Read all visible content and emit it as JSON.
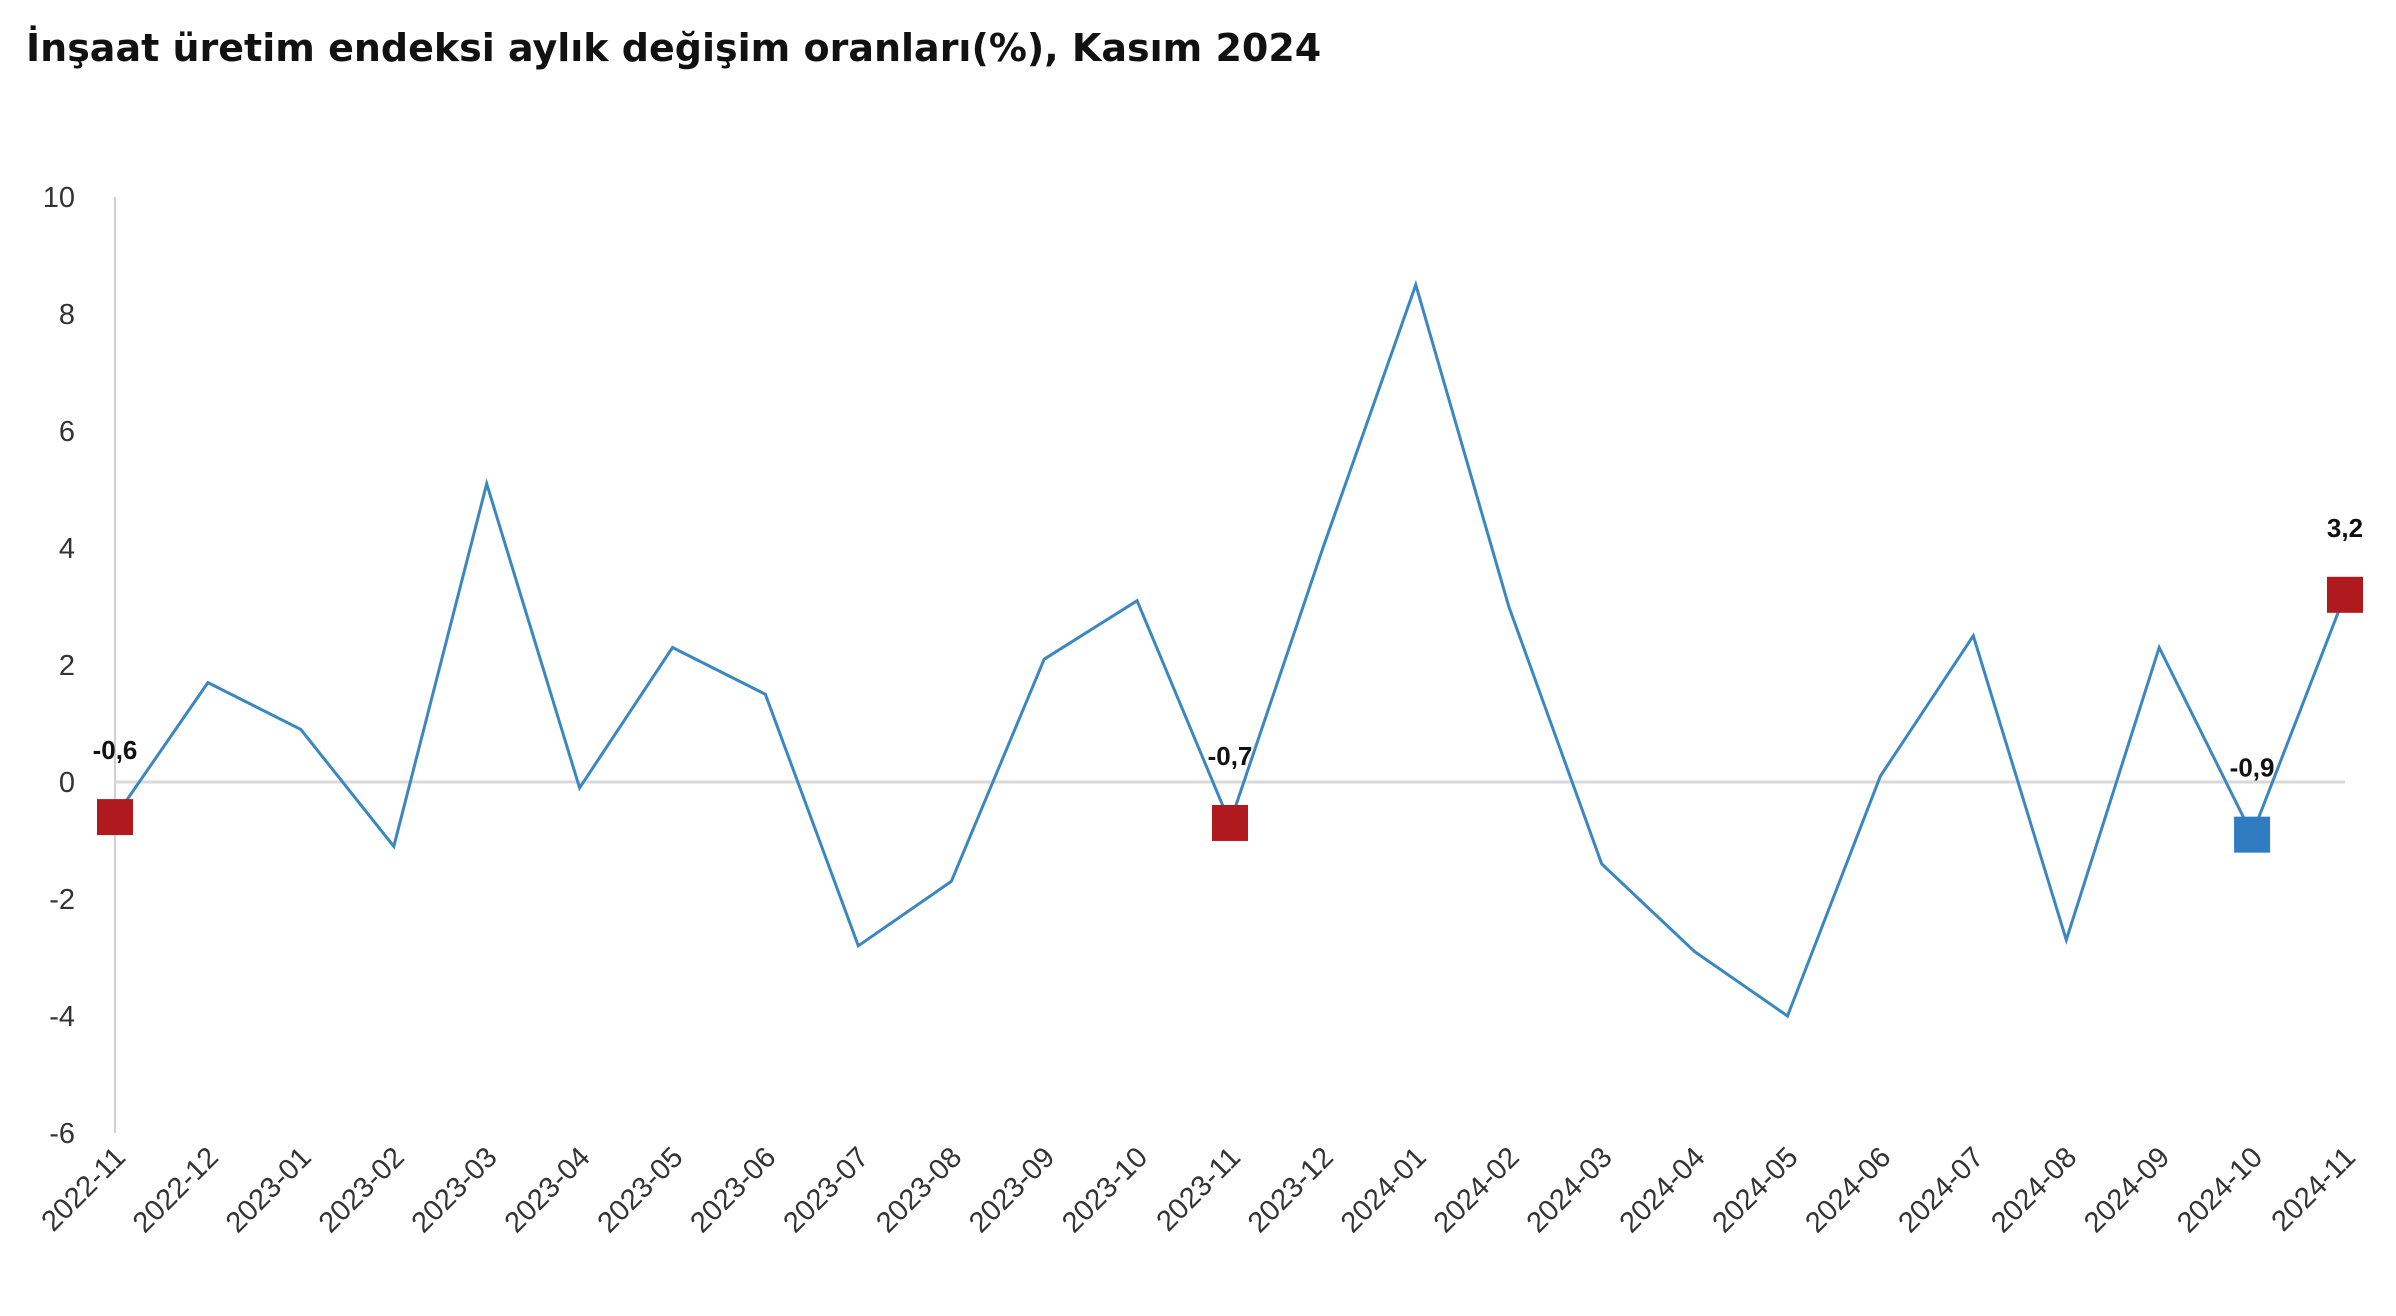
{
  "title": "İnşaat üretim endeksi aylık değişim oranları(%), Kasım 2024",
  "chart_data": {
    "type": "line",
    "title": "İnşaat üretim endeksi aylık değişim oranları(%), Kasım 2024",
    "xlabel": "",
    "ylabel": "",
    "ylim": [
      -6,
      10
    ],
    "yticks": [
      10,
      8,
      6,
      4,
      2,
      0,
      -2,
      -4,
      -6
    ],
    "grid": false,
    "legend": "none",
    "categories": [
      "2022-11",
      "2022-12",
      "2023-01",
      "2023-02",
      "2023-03",
      "2023-04",
      "2023-05",
      "2023-06",
      "2023-07",
      "2023-08",
      "2023-09",
      "2023-10",
      "2023-11",
      "2023-12",
      "2024-01",
      "2024-02",
      "2024-03",
      "2024-04",
      "2024-05",
      "2024-06",
      "2024-07",
      "2024-08",
      "2024-09",
      "2024-10",
      "2024-11"
    ],
    "series": [
      {
        "color": "#3b87c0",
        "values": [
          -0.6,
          1.7,
          0.9,
          -1.1,
          5.1,
          -0.1,
          2.3,
          1.5,
          -2.8,
          -1.7,
          2.1,
          3.1,
          -0.7,
          4.0,
          8.5,
          3.0,
          -1.4,
          -2.9,
          -4.0,
          0.1,
          2.5,
          -2.7,
          2.3,
          -0.9,
          3.2
        ]
      }
    ],
    "highlighted_points": [
      {
        "category": "2022-11",
        "value": -0.6,
        "label": "-0,6",
        "color": "#b0191e"
      },
      {
        "category": "2023-11",
        "value": -0.7,
        "label": "-0,7",
        "color": "#b0191e"
      },
      {
        "category": "2024-10",
        "value": -0.9,
        "label": "-0,9",
        "color": "#2f7dc0"
      },
      {
        "category": "2024-11",
        "value": 3.2,
        "label": "3,2",
        "color": "#b0191e"
      }
    ],
    "colors": {
      "line": "#3b87c0",
      "axis": "#d0d0d0",
      "zero_line": "#d9d9d9"
    }
  }
}
